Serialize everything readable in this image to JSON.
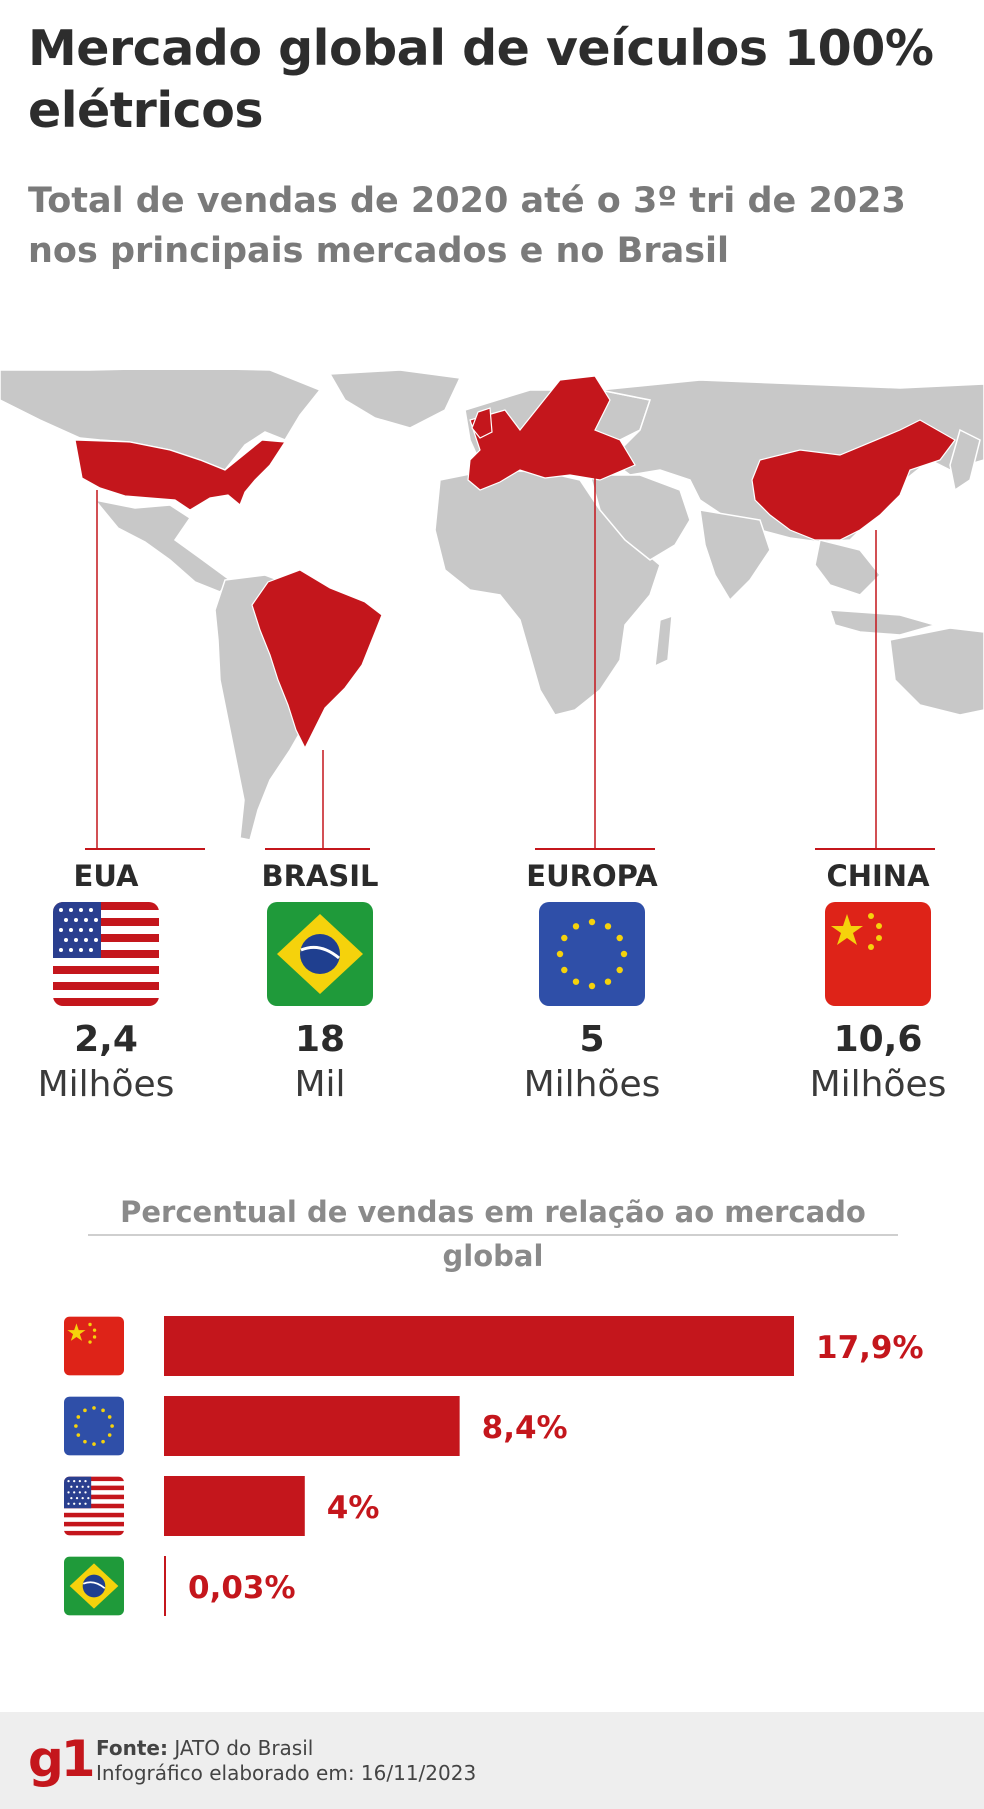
{
  "title": "Mercado global de veículos 100% elétricos",
  "subtitle": "Total de vendas de 2020 até o 3º tri de 2023 nos principais mercados e no Brasil",
  "colors": {
    "highlight": "#c4161c",
    "land": "#c8c8c8",
    "label_red": "#c4161c"
  },
  "markets": [
    {
      "name": "EUA",
      "flag": "us-flag",
      "value": "2,4",
      "unit": "Milhões"
    },
    {
      "name": "BRASIL",
      "flag": "brazil-flag",
      "value": "18",
      "unit": "Mil"
    },
    {
      "name": "EUROPA",
      "flag": "eu-flag",
      "value": "5",
      "unit": "Milhões"
    },
    {
      "name": "CHINA",
      "flag": "china-flag",
      "value": "10,6",
      "unit": "Milhões"
    }
  ],
  "chart_data": {
    "type": "bar",
    "orientation": "horizontal",
    "title": "Percentual de vendas em relação ao mercado global",
    "categories": [
      "China",
      "Europa",
      "EUA",
      "Brasil"
    ],
    "values": [
      17.9,
      8.4,
      4,
      0.03
    ],
    "labels": [
      "17,9%",
      "8,4%",
      "4%",
      "0,03%"
    ],
    "flags": [
      "china-flag",
      "eu-flag",
      "us-flag",
      "brazil-flag"
    ],
    "xlim": [
      0,
      17.9
    ],
    "grid": false
  },
  "footer": {
    "logo": "g1",
    "source_label": "Fonte:",
    "source": "JATO do Brasil",
    "date_label": "Infográfico elaborado em:",
    "date": "16/11/2023"
  }
}
